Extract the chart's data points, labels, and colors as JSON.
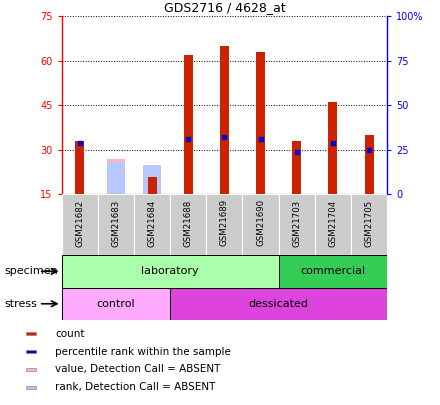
{
  "title": "GDS2716 / 4628_at",
  "samples": [
    "GSM21682",
    "GSM21683",
    "GSM21684",
    "GSM21688",
    "GSM21689",
    "GSM21690",
    "GSM21703",
    "GSM21704",
    "GSM21705"
  ],
  "count_values": [
    33,
    0,
    21,
    62,
    65,
    63,
    33,
    46,
    35
  ],
  "rank_values": [
    29,
    0,
    0,
    31,
    32,
    31,
    24,
    29,
    25
  ],
  "absent_value_bars": [
    0,
    27,
    0,
    0,
    0,
    0,
    0,
    0,
    0
  ],
  "absent_rank_bars": [
    0,
    26,
    25,
    0,
    0,
    0,
    0,
    0,
    0
  ],
  "absent_value_color": "#ffb6b6",
  "absent_rank_color": "#b6c8ff",
  "count_color": "#cc2200",
  "rank_color": "#0000cc",
  "ylim_left": [
    15,
    75
  ],
  "ylim_right": [
    0,
    100
  ],
  "yticks_left": [
    15,
    30,
    45,
    60,
    75
  ],
  "yticks_right": [
    0,
    25,
    50,
    75,
    100
  ],
  "ytick_labels_left": [
    "15",
    "30",
    "45",
    "60",
    "75"
  ],
  "ytick_labels_right": [
    "0",
    "25",
    "50",
    "75",
    "100%"
  ],
  "specimen_groups": [
    {
      "label": "laboratory",
      "cols": [
        0,
        5
      ],
      "color": "#aaffaa"
    },
    {
      "label": "commercial",
      "cols": [
        6,
        8
      ],
      "color": "#33cc55"
    }
  ],
  "stress_groups": [
    {
      "label": "control",
      "cols": [
        0,
        2
      ],
      "color": "#ffaaff"
    },
    {
      "label": "dessicated",
      "cols": [
        3,
        8
      ],
      "color": "#dd44dd"
    }
  ],
  "specimen_label": "specimen",
  "stress_label": "stress",
  "legend_items": [
    {
      "color": "#cc2200",
      "label": "count"
    },
    {
      "color": "#0000cc",
      "label": "percentile rank within the sample"
    },
    {
      "color": "#ffb6b6",
      "label": "value, Detection Call = ABSENT"
    },
    {
      "color": "#b6c8ff",
      "label": "rank, Detection Call = ABSENT"
    }
  ],
  "count_bar_width": 0.25,
  "absent_bar_width": 0.5
}
